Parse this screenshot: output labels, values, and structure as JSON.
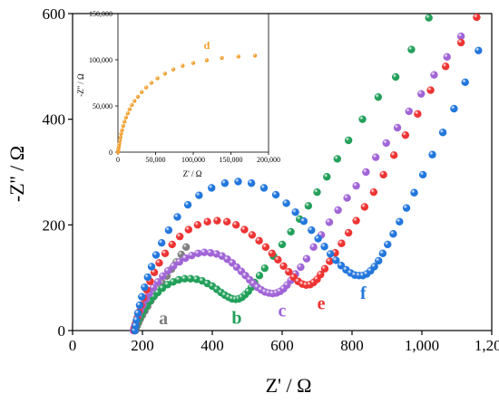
{
  "chart_data": [
    {
      "type": "scatter",
      "xlabel": "Z' / Ω",
      "ylabel": "-Z'' / Ω",
      "xlim": [
        0,
        1200
      ],
      "ylim": [
        0,
        600
      ],
      "xticks": [
        {
          "value": 0,
          "label": "0"
        },
        {
          "value": 200,
          "label": "200"
        },
        {
          "value": 400,
          "label": "400"
        },
        {
          "value": 600,
          "label": "600"
        },
        {
          "value": 800,
          "label": "800"
        },
        {
          "value": 1000,
          "label": "1,000"
        },
        {
          "value": 1200,
          "label": "1,200"
        }
      ],
      "yticks": [
        {
          "value": 0,
          "label": "0"
        },
        {
          "value": 200,
          "label": "200"
        },
        {
          "value": 400,
          "label": "400"
        },
        {
          "value": 600,
          "label": "600"
        }
      ],
      "grid": false,
      "series": [
        {
          "name": "a",
          "color": "#7f7f7f",
          "label_at": [
            260,
            12
          ],
          "points": [
            [
              180,
              0
            ],
            [
              182,
              4
            ],
            [
              185,
              9
            ],
            [
              189,
              15
            ],
            [
              194,
              22
            ],
            [
              200,
              29
            ],
            [
              207,
              37
            ],
            [
              215,
              46
            ],
            [
              224,
              56
            ],
            [
              234,
              66
            ],
            [
              245,
              78
            ],
            [
              257,
              90
            ],
            [
              270,
              103
            ],
            [
              283,
              116
            ],
            [
              297,
              130
            ],
            [
              311,
              144
            ],
            [
              325,
              158
            ]
          ]
        },
        {
          "name": "b",
          "color": "#22a05a",
          "label_at": [
            470,
            13
          ],
          "points": [
            [
              176,
              0
            ],
            [
              178,
              4
            ],
            [
              181,
              9
            ],
            [
              185,
              15
            ],
            [
              190,
              22
            ],
            [
              196,
              29
            ],
            [
              203,
              38
            ],
            [
              211,
              46
            ],
            [
              221,
              55
            ],
            [
              232,
              64
            ],
            [
              244,
              72
            ],
            [
              257,
              80
            ],
            [
              272,
              87
            ],
            [
              288,
              92
            ],
            [
              304,
              96
            ],
            [
              321,
              98
            ],
            [
              338,
              98
            ],
            [
              355,
              97
            ],
            [
              371,
              94
            ],
            [
              386,
              89
            ],
            [
              400,
              84
            ],
            [
              413,
              78
            ],
            [
              425,
              72
            ],
            [
              436,
              67
            ],
            [
              447,
              63
            ],
            [
              457,
              60
            ],
            [
              467,
              59
            ],
            [
              476,
              60
            ],
            [
              485,
              63
            ],
            [
              494,
              68
            ],
            [
              503,
              74
            ],
            [
              512,
              82
            ],
            [
              521,
              91
            ],
            [
              535,
              104
            ],
            [
              550,
              118
            ],
            [
              575,
              141
            ],
            [
              600,
              163
            ],
            [
              625,
              187
            ],
            [
              650,
              211
            ],
            [
              675,
              236
            ],
            [
              700,
              262
            ],
            [
              728,
              291
            ],
            [
              758,
              325
            ],
            [
              790,
              360
            ],
            [
              830,
              400
            ],
            [
              875,
              442
            ],
            [
              925,
              480
            ],
            [
              970,
              532
            ],
            [
              1020,
              592
            ]
          ]
        },
        {
          "name": "c",
          "color": "#a064d7",
          "label_at": [
            600,
            27
          ],
          "points": [
            [
              174,
              0
            ],
            [
              176,
              5
            ],
            [
              179,
              11
            ],
            [
              183,
              19
            ],
            [
              188,
              28
            ],
            [
              194,
              38
            ],
            [
              201,
              48
            ],
            [
              210,
              59
            ],
            [
              220,
              70
            ],
            [
              231,
              81
            ],
            [
              244,
              92
            ],
            [
              258,
              103
            ],
            [
              273,
              113
            ],
            [
              289,
              122
            ],
            [
              306,
              130
            ],
            [
              323,
              137
            ],
            [
              341,
              142
            ],
            [
              359,
              146
            ],
            [
              377,
              148
            ],
            [
              395,
              147
            ],
            [
              412,
              145
            ],
            [
              428,
              141
            ],
            [
              443,
              135
            ],
            [
              457,
              128
            ],
            [
              470,
              120
            ],
            [
              483,
              112
            ],
            [
              495,
              104
            ],
            [
              507,
              96
            ],
            [
              518,
              89
            ],
            [
              529,
              82
            ],
            [
              540,
              77
            ],
            [
              551,
              73
            ],
            [
              562,
              71
            ],
            [
              573,
              70
            ],
            [
              584,
              71
            ],
            [
              594,
              74
            ],
            [
              604,
              79
            ],
            [
              614,
              86
            ],
            [
              625,
              95
            ],
            [
              638,
              107
            ],
            [
              653,
              120
            ],
            [
              670,
              136
            ],
            [
              690,
              158
            ],
            [
              712,
              181
            ],
            [
              735,
              205
            ],
            [
              760,
              228
            ],
            [
              786,
              251
            ],
            [
              812,
              274
            ],
            [
              840,
              300
            ],
            [
              868,
              328
            ],
            [
              898,
              355
            ],
            [
              930,
              384
            ],
            [
              963,
              415
            ],
            [
              998,
              448
            ],
            [
              1035,
              484
            ],
            [
              1072,
              518
            ],
            [
              1112,
              557
            ]
          ]
        },
        {
          "name": "e",
          "color": "#ee3333",
          "label_at": [
            712,
            40
          ],
          "points": [
            [
              176,
              0
            ],
            [
              178,
              6
            ],
            [
              181,
              14
            ],
            [
              185,
              24
            ],
            [
              190,
              35
            ],
            [
              196,
              48
            ],
            [
              203,
              62
            ],
            [
              212,
              77
            ],
            [
              222,
              93
            ],
            [
              234,
              110
            ],
            [
              248,
              128
            ],
            [
              265,
              146
            ],
            [
              285,
              163
            ],
            [
              307,
              178
            ],
            [
              332,
              191
            ],
            [
              358,
              200
            ],
            [
              386,
              206
            ],
            [
              414,
              208
            ],
            [
              442,
              206
            ],
            [
              468,
              200
            ],
            [
              492,
              191
            ],
            [
              514,
              181
            ],
            [
              534,
              170
            ],
            [
              553,
              158
            ],
            [
              571,
              146
            ],
            [
              588,
              134
            ],
            [
              604,
              122
            ],
            [
              619,
              111
            ],
            [
              633,
              101
            ],
            [
              646,
              93
            ],
            [
              658,
              88
            ],
            [
              669,
              86
            ],
            [
              680,
              87
            ],
            [
              690,
              91
            ],
            [
              700,
              97
            ],
            [
              710,
              106
            ],
            [
              722,
              117
            ],
            [
              736,
              131
            ],
            [
              752,
              147
            ],
            [
              770,
              165
            ],
            [
              790,
              185
            ],
            [
              812,
              208
            ],
            [
              836,
              234
            ],
            [
              862,
              262
            ],
            [
              890,
              295
            ],
            [
              920,
              332
            ],
            [
              953,
              370
            ],
            [
              988,
              410
            ],
            [
              1025,
              455
            ],
            [
              1068,
              500
            ],
            [
              1112,
              545
            ],
            [
              1157,
              593
            ]
          ]
        },
        {
          "name": "f",
          "color": "#2277dd",
          "label_at": [
            832,
            60
          ],
          "points": [
            [
              178,
              0
            ],
            [
              180,
              9
            ],
            [
              183,
              20
            ],
            [
              187,
              33
            ],
            [
              192,
              48
            ],
            [
              198,
              64
            ],
            [
              206,
              82
            ],
            [
              215,
              101
            ],
            [
              226,
              121
            ],
            [
              239,
              143
            ],
            [
              255,
              166
            ],
            [
              275,
              190
            ],
            [
              300,
              215
            ],
            [
              330,
              238
            ],
            [
              362,
              256
            ],
            [
              398,
              270
            ],
            [
              436,
              279
            ],
            [
              474,
              282
            ],
            [
              512,
              279
            ],
            [
              548,
              270
            ],
            [
              582,
              257
            ],
            [
              612,
              241
            ],
            [
              638,
              224
            ],
            [
              662,
              207
            ],
            [
              684,
              190
            ],
            [
              703,
              174
            ],
            [
              721,
              159
            ],
            [
              738,
              145
            ],
            [
              754,
              133
            ],
            [
              769,
              123
            ],
            [
              783,
              115
            ],
            [
              796,
              109
            ],
            [
              808,
              105
            ],
            [
              820,
              104
            ],
            [
              831,
              104
            ],
            [
              842,
              107
            ],
            [
              853,
              113
            ],
            [
              864,
              121
            ],
            [
              876,
              132
            ],
            [
              888,
              146
            ],
            [
              902,
              163
            ],
            [
              918,
              183
            ],
            [
              936,
              206
            ],
            [
              956,
              232
            ],
            [
              978,
              261
            ],
            [
              1003,
              295
            ],
            [
              1030,
              333
            ],
            [
              1060,
              375
            ],
            [
              1092,
              420
            ],
            [
              1124,
              470
            ],
            [
              1162,
              530
            ]
          ]
        }
      ]
    },
    {
      "type": "scatter",
      "xlabel": "Z' / Ω",
      "ylabel": "-Z'' / Ω",
      "xlim": [
        0,
        200000
      ],
      "ylim": [
        0,
        150000
      ],
      "xticks": [
        {
          "value": 0,
          "label": "0"
        },
        {
          "value": 50000,
          "label": "50,000"
        },
        {
          "value": 100000,
          "label": "100,000"
        },
        {
          "value": 150000,
          "label": "150,000"
        },
        {
          "value": 200000,
          "label": "200,000"
        }
      ],
      "yticks": [
        {
          "value": 0,
          "label": "0"
        },
        {
          "value": 50000,
          "label": "50,000"
        },
        {
          "value": 100000,
          "label": "100,000"
        },
        {
          "value": 150000,
          "label": "150,000"
        }
      ],
      "series": [
        {
          "name": "d",
          "color": "#f0a030",
          "label_at": [
            118000,
            112000
          ],
          "points": [
            [
              0,
              0
            ],
            [
              300,
              1500
            ],
            [
              700,
              3500
            ],
            [
              1200,
              6000
            ],
            [
              1800,
              9000
            ],
            [
              2500,
              12500
            ],
            [
              3300,
              16000
            ],
            [
              4300,
              20000
            ],
            [
              5500,
              24000
            ],
            [
              7000,
              28500
            ],
            [
              8700,
              33000
            ],
            [
              10700,
              37500
            ],
            [
              13000,
              42000
            ],
            [
              15500,
              46500
            ],
            [
              18500,
              51000
            ],
            [
              22000,
              55500
            ],
            [
              26500,
              60000
            ],
            [
              31500,
              65000
            ],
            [
              37500,
              70000
            ],
            [
              44500,
              75000
            ],
            [
              52500,
              80000
            ],
            [
              62500,
              85000
            ],
            [
              73500,
              89500
            ],
            [
              86000,
              93500
            ],
            [
              100000,
              96500
            ],
            [
              118000,
              99500
            ],
            [
              138000,
              102000
            ],
            [
              160000,
              103500
            ],
            [
              182000,
              104500
            ]
          ]
        }
      ]
    }
  ]
}
